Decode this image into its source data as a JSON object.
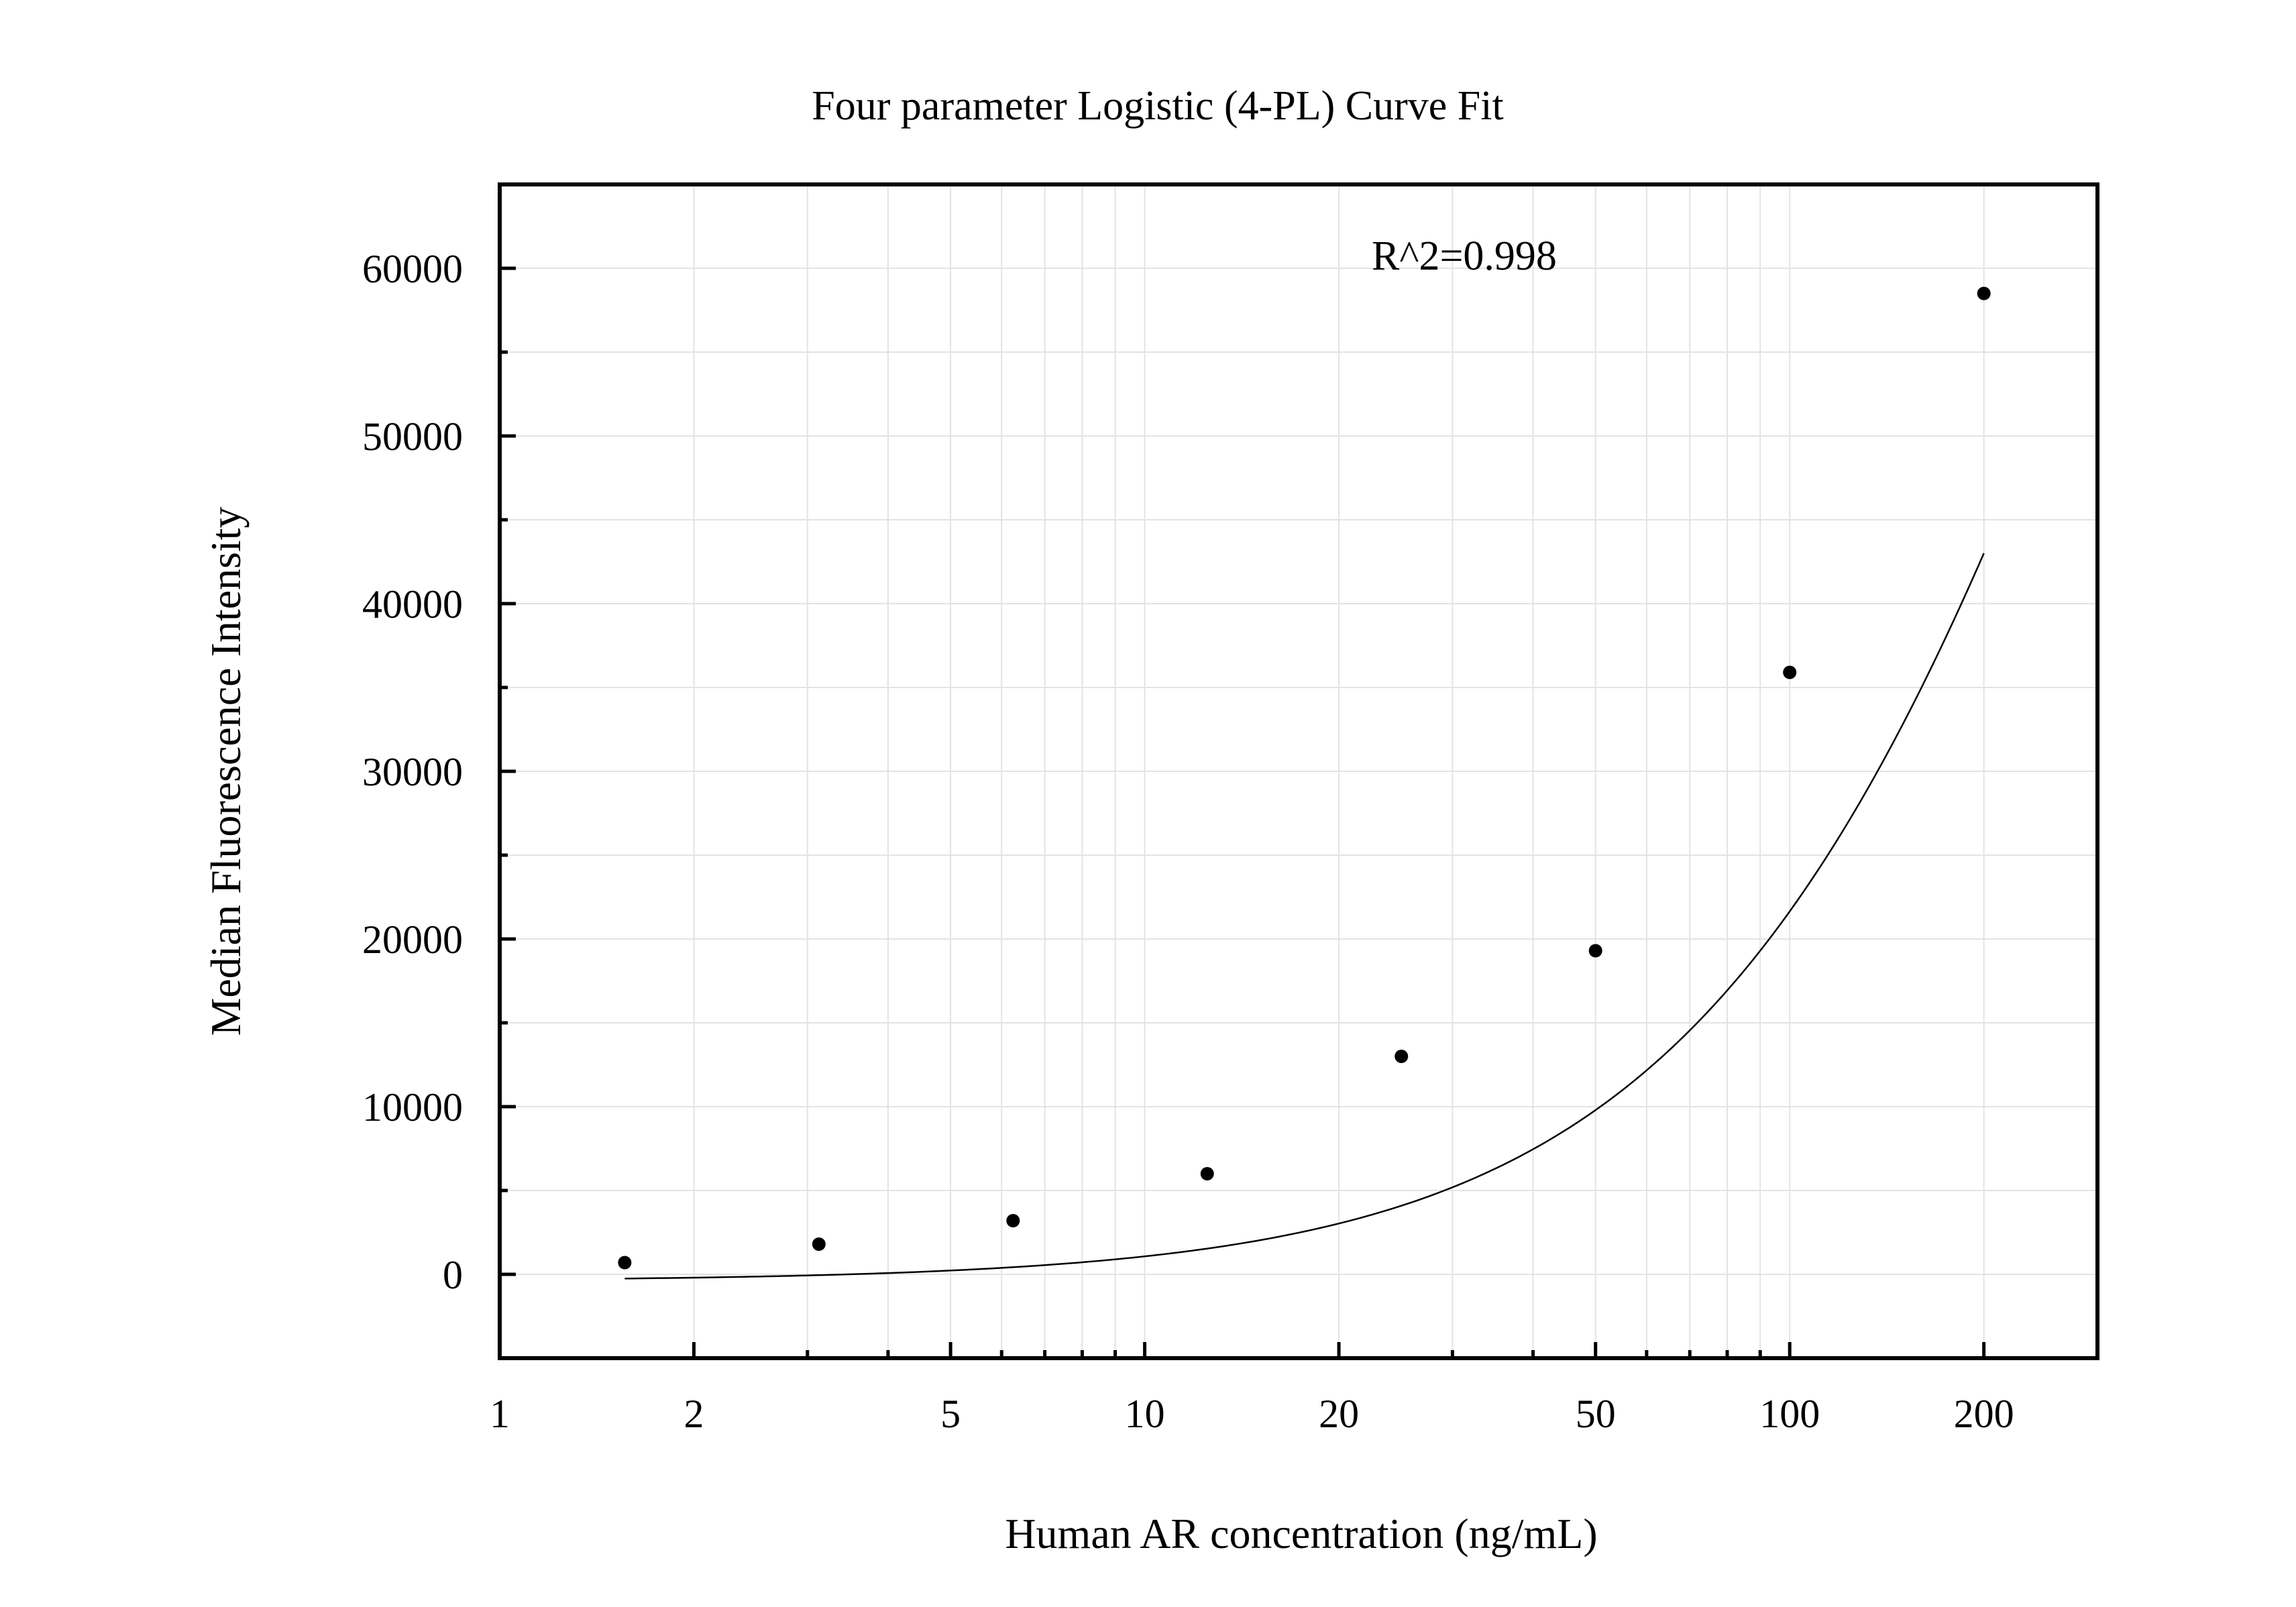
{
  "chart_data": {
    "type": "scatter",
    "title": "Four parameter Logistic (4-PL) Curve Fit",
    "xlabel": "Human AR concentration (ng/mL)",
    "ylabel": "Median Fluorescence Intensity",
    "annotation": "R^2=0.998",
    "x_scale": "log",
    "xlim": [
      1,
      300
    ],
    "ylim": [
      -5000,
      65000
    ],
    "grid": true,
    "x_ticks": [
      1,
      2,
      5,
      10,
      20,
      50,
      100,
      200
    ],
    "x_tick_labels": [
      "1",
      "2",
      "5",
      "10",
      "20",
      "50",
      "100",
      "200"
    ],
    "y_ticks": [
      0,
      10000,
      20000,
      30000,
      40000,
      50000,
      60000
    ],
    "y_tick_labels": [
      "0",
      "10000",
      "20000",
      "30000",
      "40000",
      "50000",
      "60000"
    ],
    "series": [
      {
        "type": "scatter",
        "x": [
          1.5625,
          3.125,
          6.25,
          12.5,
          25,
          50,
          100,
          200
        ],
        "y": [
          700,
          1800,
          3200,
          6000,
          13000,
          19300,
          35900,
          58500
        ]
      }
    ],
    "fit": {
      "type": "4PL",
      "x_range": [
        1.5625,
        200
      ],
      "params": {
        "A": -400,
        "B": 1.24,
        "C": 414,
        "D": 150000
      }
    },
    "colors": {
      "points": "#000000",
      "curve": "#000000",
      "grid": "#e3e3e3",
      "frame": "#000000"
    }
  }
}
